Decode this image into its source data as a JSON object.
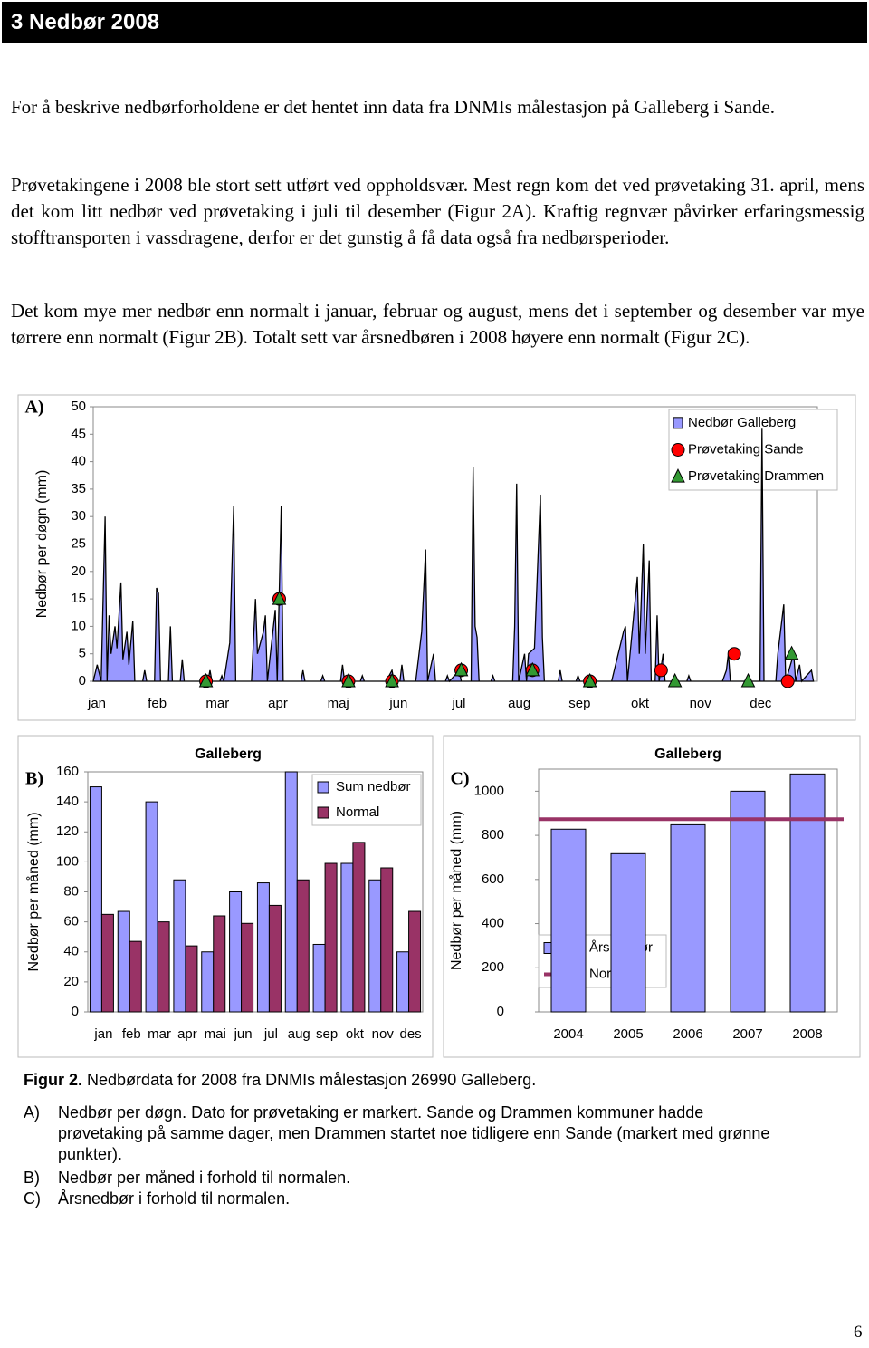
{
  "header": {
    "title": "3 Nedbør 2008"
  },
  "paragraphs": [
    "For å beskrive nedbørforholdene er det hentet inn data fra DNMIs målestasjon på Galleberg i Sande.",
    "Prøvetakingene i 2008 ble stort sett utført ved oppholdsvær. Mest regn kom det ved prøvetaking 31. april, mens det kom litt nedbør ved prøvetaking i juli til desember (Figur 2A). Kraftig regnvær påvirker erfaringsmessig stofftransporten i vassdragene, derfor er det gunstig å få data også fra nedbørsperioder.",
    "Det kom mye mer nedbør enn normalt i januar, februar og august, mens det i september og desember var mye tørrere enn normalt (Figur 2B). Totalt sett var årsnedbøren i 2008 høyere enn normalt (Figur 2C)."
  ],
  "chart_data": [
    {
      "type": "area",
      "label": "A)",
      "y_label": "Nedbør per døgn (mm)",
      "legend": "upper right",
      "categories": [
        "jan",
        "feb",
        "mar",
        "apr",
        "maj",
        "jun",
        "jul",
        "aug",
        "sep",
        "okt",
        "nov",
        "dec"
      ],
      "xlim": [
        0,
        366
      ],
      "ylim": [
        0,
        50
      ],
      "yticks": [
        0,
        5,
        10,
        15,
        20,
        25,
        30,
        35,
        40,
        45,
        50
      ],
      "series": [
        {
          "name": "Nedbør Galleberg",
          "color": "#9999ff",
          "marker": "area",
          "x": [
            0,
            2,
            4,
            6,
            7,
            8,
            9,
            11,
            12,
            14,
            15,
            17,
            18,
            20,
            21,
            25,
            26,
            27,
            31,
            32,
            33,
            34,
            38,
            39,
            40,
            44,
            45,
            46,
            58,
            59,
            60,
            64,
            65,
            66,
            69,
            71,
            72,
            80,
            82,
            83,
            86,
            87,
            88,
            92,
            93,
            95,
            96,
            105,
            106,
            107,
            115,
            116,
            117,
            125,
            126,
            127,
            135,
            136,
            137,
            148,
            151,
            152,
            155,
            156,
            157,
            163,
            166,
            168,
            169,
            172,
            173,
            178,
            179,
            180,
            185,
            186,
            191,
            192,
            193,
            194,
            195,
            201,
            202,
            203,
            212,
            213,
            214,
            215,
            218,
            219,
            220,
            223,
            226,
            227,
            228,
            235,
            236,
            237,
            244,
            245,
            246,
            262,
            268,
            269,
            270,
            275,
            276,
            278,
            279,
            281,
            282,
            284,
            285,
            286,
            288,
            289,
            300,
            301,
            302,
            318,
            320,
            321,
            322,
            337,
            338,
            339,
            345,
            346,
            349,
            350,
            354,
            355,
            357,
            358,
            363,
            364
          ],
          "values": [
            0,
            3,
            0,
            30,
            0,
            12,
            5,
            10,
            6,
            18,
            4,
            9,
            3,
            11,
            0,
            0,
            2,
            0,
            0,
            17,
            16,
            0,
            0,
            10,
            0,
            0,
            4,
            0,
            0,
            2,
            0,
            0,
            1,
            0,
            7,
            32,
            0,
            0,
            15,
            5,
            9,
            12,
            0,
            13,
            0,
            32,
            0,
            0,
            2,
            0,
            0,
            1,
            0,
            0,
            3,
            0,
            0,
            1,
            0,
            0,
            2,
            0,
            0,
            3,
            0,
            0,
            9,
            24,
            0,
            5,
            0,
            0,
            1,
            0,
            2,
            0,
            0,
            39,
            10,
            8,
            0,
            0,
            1,
            0,
            0,
            10,
            36,
            0,
            5,
            0,
            5,
            6,
            34,
            8,
            0,
            0,
            2,
            0,
            0,
            1,
            0,
            0,
            9,
            10,
            0,
            19,
            5,
            25,
            5,
            22,
            0,
            0,
            12,
            0,
            5,
            0,
            0,
            1,
            0,
            0,
            2,
            5,
            0,
            0,
            46,
            0,
            0,
            5,
            14,
            0,
            5,
            0,
            3,
            0,
            2,
            0
          ]
        },
        {
          "name": "Prøvetaking Sande",
          "color": "#ff0000",
          "marker": "circle",
          "x": [
            57,
            94,
            129,
            151,
            186,
            222,
            251,
            287,
            324,
            351
          ],
          "values": [
            0,
            15,
            0,
            0,
            2,
            2,
            0,
            2,
            5,
            0
          ]
        },
        {
          "name": "Prøvetaking Drammen",
          "color": "#339933",
          "marker": "triangle",
          "x": [
            57,
            94,
            129,
            151,
            186,
            222,
            251,
            294,
            331,
            353
          ],
          "values": [
            0,
            15,
            0,
            0,
            2,
            2,
            0,
            0,
            0,
            5
          ]
        }
      ]
    },
    {
      "type": "bar",
      "label": "B)",
      "title": "Galleberg",
      "y_label": "Nedbør per måned (mm)",
      "legend": "upper right",
      "categories": [
        "jan",
        "feb",
        "mar",
        "apr",
        "mai",
        "jun",
        "jul",
        "aug",
        "sep",
        "okt",
        "nov",
        "des"
      ],
      "ylim": [
        0,
        160
      ],
      "yticks": [
        0,
        20,
        40,
        60,
        80,
        100,
        120,
        140,
        160
      ],
      "series": [
        {
          "name": "Sum nedbør",
          "color": "#9999ff",
          "values": [
            150,
            67,
            140,
            88,
            40,
            80,
            86,
            160,
            45,
            99,
            88,
            40
          ]
        },
        {
          "name": "Normal",
          "color": "#993366",
          "values": [
            65,
            47,
            60,
            44,
            64,
            59,
            71,
            88,
            99,
            113,
            96,
            67
          ]
        }
      ]
    },
    {
      "type": "bar",
      "label": "C)",
      "title": "Galleberg",
      "y_label": "Nedbør per måned (mm)",
      "legend": "lower left",
      "categories": [
        "2004",
        "2005",
        "2006",
        "2007",
        "2008"
      ],
      "ylim": [
        0,
        1100
      ],
      "yticks": [
        0,
        200,
        400,
        600,
        800,
        1000
      ],
      "series": [
        {
          "name": "Årsnedbør",
          "color": "#9999ff",
          "values": [
            828,
            717,
            848,
            1000,
            1078
          ]
        },
        {
          "name": "Normal",
          "color": "#993366",
          "type": "line",
          "values": [
            873,
            873,
            873,
            873,
            873
          ]
        }
      ]
    }
  ],
  "caption": {
    "label": "Figur 2.",
    "text": "Nedbørdata for 2008 fra DNMIs målestasjon 26990 Galleberg.",
    "items": [
      {
        "letter": "A)",
        "text": "Nedbør per døgn. Dato for prøvetaking er markert. Sande og Drammen kommuner hadde prøvetaking på samme dager, men Drammen startet noe tidligere enn Sande (markert med grønne punkter)."
      },
      {
        "letter": "B)",
        "text": "Nedbør per måned i forhold til normalen."
      },
      {
        "letter": "C)",
        "text": "Årsnedbør i forhold til normalen."
      }
    ]
  },
  "page_number": "6"
}
